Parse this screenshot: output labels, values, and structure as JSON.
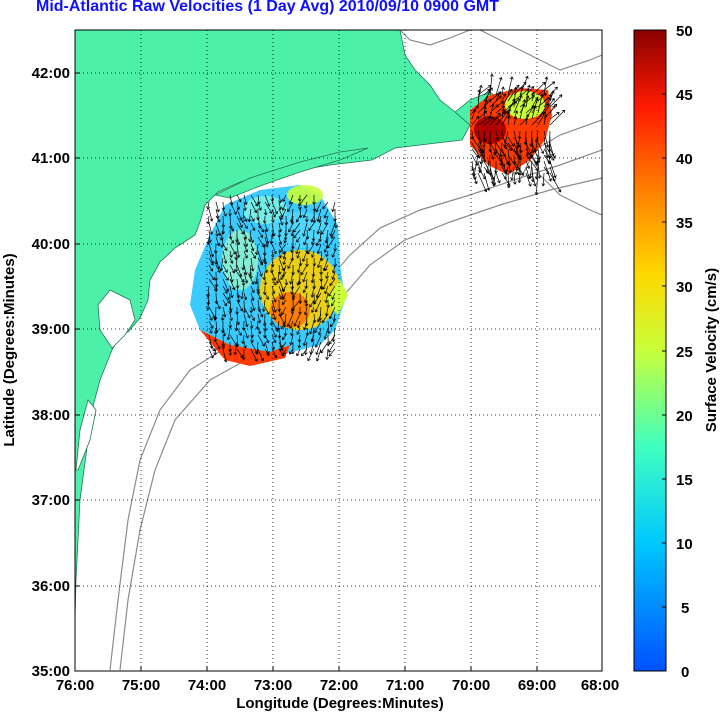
{
  "title": "Mid-Atlantic Raw Velocities (1 Day Avg) 2010/09/10 0900 GMT",
  "map": {
    "xlabel": "Longitude (Degrees:Minutes)",
    "ylabel": "Latitude (Degrees:Minutes)",
    "x_ticks": [
      "76:00",
      "75:00",
      "74:00",
      "73:00",
      "72:00",
      "71:00",
      "70:00",
      "69:00",
      "68:00"
    ],
    "y_ticks": [
      "42:00",
      "41:00",
      "40:00",
      "39:00",
      "38:00",
      "37:00",
      "36:00",
      "35:00"
    ],
    "lon_range": [
      -76,
      -68
    ],
    "lat_range": [
      35,
      42.5
    ],
    "land_color": "#4df0a8",
    "grid": "dotted"
  },
  "colorbar": {
    "label": "Surface Velocity (cm/s)",
    "ticks": [
      "0",
      "5",
      "10",
      "15",
      "20",
      "25",
      "30",
      "35",
      "40",
      "45",
      "50"
    ],
    "range": [
      0,
      50
    ],
    "colormap": "jet"
  }
}
